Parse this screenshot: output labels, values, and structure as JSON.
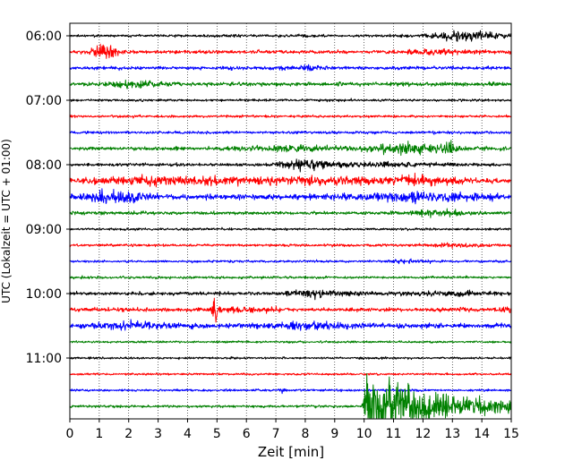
{
  "chart_data": {
    "type": "line",
    "title": "",
    "xlabel": "Zeit  [min]",
    "ylabel": "UTC (Lokalzeit = UTC + 01:00)",
    "xlim": [
      0,
      15
    ],
    "x_ticks": [
      "0",
      "1",
      "2",
      "3",
      "4",
      "5",
      "6",
      "7",
      "8",
      "9",
      "10",
      "11",
      "12",
      "13",
      "14",
      "15"
    ],
    "y_ticks": [
      "06:00",
      "07:00",
      "08:00",
      "09:00",
      "10:00",
      "11:00"
    ],
    "grid": "vertical dotted",
    "legend": "none",
    "trace_colors": [
      "#000000",
      "#ff0000",
      "#0000ff",
      "#008000"
    ],
    "traces": [
      {
        "start": "06:00",
        "base": 1.2,
        "bursts": [
          [
            12.8,
            1.0,
            3.0
          ],
          [
            13.9,
            0.8,
            4.0
          ]
        ]
      },
      {
        "start": "06:15",
        "base": 1.6,
        "bursts": [
          [
            1.2,
            0.4,
            6.0
          ],
          [
            12.5,
            1.0,
            2.2
          ]
        ]
      },
      {
        "start": "06:30",
        "base": 1.6,
        "bursts": [
          [
            8.0,
            0.6,
            2.0
          ]
        ]
      },
      {
        "start": "06:45",
        "base": 1.8,
        "bursts": [
          [
            2.3,
            0.8,
            2.5
          ]
        ]
      },
      {
        "start": "07:00",
        "base": 1.1,
        "bursts": []
      },
      {
        "start": "07:15",
        "base": 1.1,
        "bursts": []
      },
      {
        "start": "07:30",
        "base": 1.3,
        "bursts": []
      },
      {
        "start": "07:45",
        "base": 1.6,
        "bursts": [
          [
            7.5,
            1.5,
            2.5
          ],
          [
            11.5,
            1.5,
            3.5
          ],
          [
            12.9,
            0.2,
            5.0
          ]
        ]
      },
      {
        "start": "08:00",
        "base": 1.4,
        "bursts": [
          [
            8.0,
            0.8,
            4.0
          ],
          [
            10.5,
            2.0,
            2.0
          ]
        ]
      },
      {
        "start": "08:15",
        "base": 2.0,
        "bursts": [
          [
            3.5,
            2.5,
            2.8
          ],
          [
            8.5,
            2.0,
            2.5
          ],
          [
            12.0,
            1.5,
            2.5
          ]
        ]
      },
      {
        "start": "08:30",
        "base": 2.5,
        "bursts": [
          [
            1.5,
            1.0,
            3.0
          ],
          [
            12.0,
            2.0,
            2.5
          ]
        ]
      },
      {
        "start": "08:45",
        "base": 1.5,
        "bursts": [
          [
            12.5,
            1.0,
            2.5
          ]
        ]
      },
      {
        "start": "09:00",
        "base": 1.1,
        "bursts": []
      },
      {
        "start": "09:15",
        "base": 1.2,
        "bursts": [
          [
            13.0,
            1.0,
            2.0
          ]
        ]
      },
      {
        "start": "09:30",
        "base": 1.1,
        "bursts": [
          [
            11.5,
            0.5,
            2.5
          ]
        ]
      },
      {
        "start": "09:45",
        "base": 1.2,
        "bursts": []
      },
      {
        "start": "10:00",
        "base": 1.6,
        "bursts": [
          [
            8.5,
            1.0,
            2.5
          ],
          [
            13.0,
            1.5,
            2.0
          ]
        ]
      },
      {
        "start": "10:15",
        "base": 1.8,
        "bursts": [
          [
            4.9,
            0.1,
            10.0
          ],
          [
            6.0,
            1.0,
            2.0
          ],
          [
            14.9,
            0.2,
            3.0
          ]
        ]
      },
      {
        "start": "10:30",
        "base": 2.2,
        "bursts": [
          [
            2.0,
            1.5,
            2.0
          ],
          [
            8.0,
            1.5,
            2.0
          ]
        ]
      },
      {
        "start": "10:45",
        "base": 1.0,
        "bursts": []
      },
      {
        "start": "11:00",
        "base": 1.0,
        "bursts": []
      },
      {
        "start": "11:15",
        "base": 1.0,
        "bursts": []
      },
      {
        "start": "11:30",
        "base": 1.1,
        "bursts": [
          [
            7.2,
            0.1,
            3.0
          ]
        ]
      },
      {
        "start": "11:45",
        "base": 1.2,
        "bursts": [],
        "event": {
          "onset": 9.9,
          "peak": 38,
          "decay": 1.6,
          "coda": 4.5
        }
      }
    ]
  }
}
